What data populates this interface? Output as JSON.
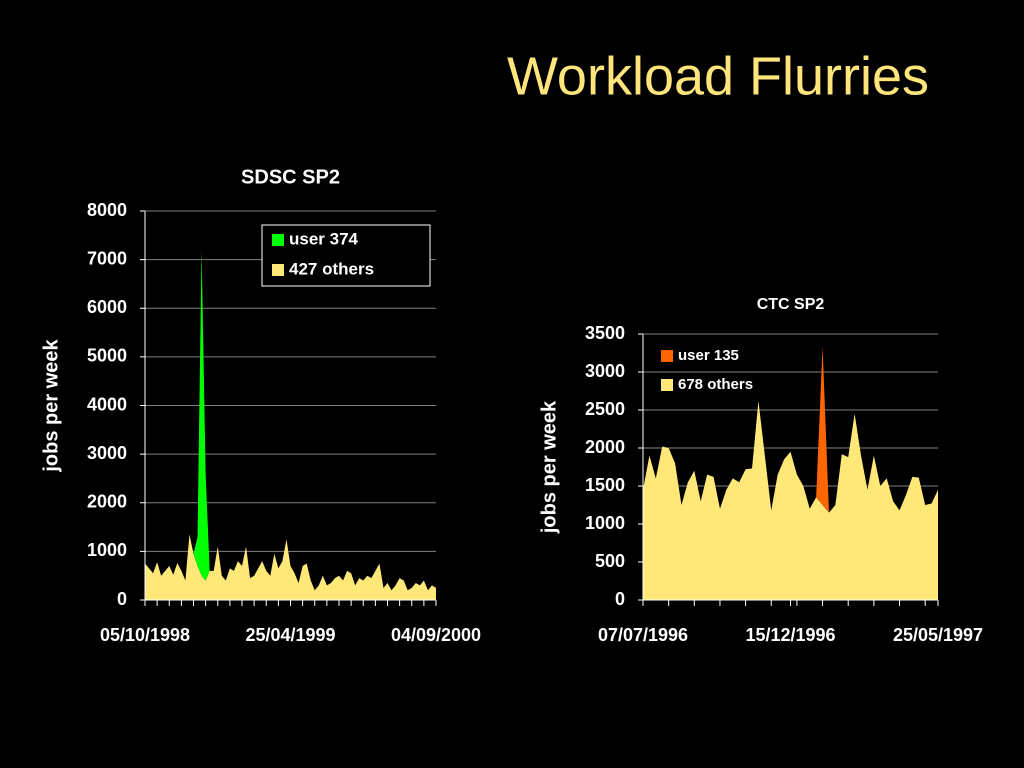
{
  "title": "Workload Flurries",
  "chart_data": [
    {
      "type": "stacked-area",
      "title": "SDSC SP2",
      "y_label": "jobs per week",
      "categories": [
        "05/10/1998",
        null,
        null,
        null,
        null,
        null,
        null,
        null,
        null,
        null,
        null,
        null,
        null,
        null,
        null,
        null,
        null,
        null,
        null,
        null,
        null,
        null,
        null,
        null,
        null,
        null,
        null,
        null,
        null,
        null,
        null,
        null,
        null,
        null,
        null,
        null,
        "25/04/1999",
        null,
        null,
        null,
        null,
        null,
        null,
        null,
        null,
        null,
        null,
        null,
        null,
        null,
        null,
        null,
        null,
        null,
        null,
        null,
        null,
        null,
        null,
        null,
        null,
        null,
        null,
        null,
        null,
        null,
        null,
        null,
        null,
        null,
        null,
        null,
        "04/09/2000"
      ],
      "series": [
        {
          "name": "427 others",
          "color": "#ffe878",
          "values": [
            750,
            650,
            550,
            780,
            500,
            600,
            700,
            520,
            760,
            600,
            400,
            1350,
            950,
            700,
            500,
            400,
            600,
            600,
            1100,
            500,
            400,
            650,
            600,
            800,
            700,
            1100,
            450,
            500,
            650,
            800,
            600,
            500,
            950,
            650,
            800,
            1250,
            700,
            550,
            350,
            700,
            750,
            400,
            200,
            300,
            500,
            300,
            350,
            450,
            500,
            400,
            600,
            550,
            300,
            450,
            400,
            500,
            450,
            600,
            750,
            250,
            350,
            200,
            300,
            450,
            400,
            200,
            250,
            350,
            300,
            400,
            200,
            300,
            250
          ]
        },
        {
          "name": "user 374",
          "color": "#00ff00",
          "values": [
            0,
            0,
            0,
            0,
            0,
            0,
            0,
            0,
            0,
            0,
            0,
            0,
            0,
            600,
            6700,
            2200,
            0,
            0,
            0,
            0,
            0,
            0,
            0,
            0,
            0,
            0,
            0,
            0,
            0,
            0,
            0,
            0,
            0,
            0,
            0,
            0,
            0,
            0,
            0,
            0,
            0,
            0,
            0,
            0,
            0,
            0,
            0,
            0,
            0,
            0,
            0,
            0,
            0,
            0,
            0,
            0,
            0,
            0,
            0,
            0,
            0,
            0,
            0,
            0,
            0,
            0,
            0,
            0,
            0,
            0,
            0,
            0,
            0
          ]
        }
      ],
      "ylim": [
        0,
        8000
      ],
      "yticks": [
        0,
        1000,
        2000,
        3000,
        4000,
        5000,
        6000,
        7000,
        8000
      ],
      "grid": true,
      "legend": "upper right",
      "legend_border": true
    },
    {
      "type": "stacked-area",
      "title": "CTC SP2",
      "y_label": "jobs per week",
      "categories": [
        "07/07/1996",
        null,
        null,
        null,
        null,
        null,
        null,
        null,
        null,
        null,
        null,
        null,
        null,
        null,
        null,
        null,
        null,
        null,
        null,
        null,
        null,
        null,
        null,
        "15/12/1996",
        null,
        null,
        null,
        null,
        null,
        null,
        null,
        null,
        null,
        null,
        null,
        null,
        null,
        null,
        null,
        null,
        null,
        null,
        null,
        null,
        null,
        null,
        "25/05/1997"
      ],
      "series": [
        {
          "name": "678 others",
          "color": "#ffe878",
          "values": [
            1450,
            1900,
            1600,
            2020,
            2000,
            1800,
            1250,
            1550,
            1700,
            1300,
            1650,
            1620,
            1200,
            1450,
            1600,
            1550,
            1720,
            1730,
            2620,
            1900,
            1180,
            1650,
            1850,
            1950,
            1650,
            1500,
            1200,
            1350,
            1250,
            1150,
            1250,
            1920,
            1880,
            2450,
            1900,
            1450,
            1900,
            1500,
            1600,
            1300,
            1180,
            1380,
            1620,
            1610,
            1250,
            1270,
            1450
          ]
        },
        {
          "name": "user 135",
          "color": "#ff6600",
          "values": [
            0,
            0,
            0,
            0,
            0,
            0,
            0,
            0,
            0,
            0,
            0,
            0,
            0,
            0,
            0,
            0,
            0,
            0,
            0,
            0,
            0,
            0,
            0,
            0,
            0,
            0,
            0,
            0,
            2080,
            0,
            0,
            0,
            0,
            0,
            0,
            0,
            0,
            0,
            0,
            0,
            0,
            0,
            0,
            0,
            0,
            0,
            0
          ]
        }
      ],
      "ylim": [
        0,
        3500
      ],
      "yticks": [
        0,
        500,
        1000,
        1500,
        2000,
        2500,
        3000,
        3500
      ],
      "grid": true,
      "legend": "upper left",
      "legend_border": false
    }
  ]
}
